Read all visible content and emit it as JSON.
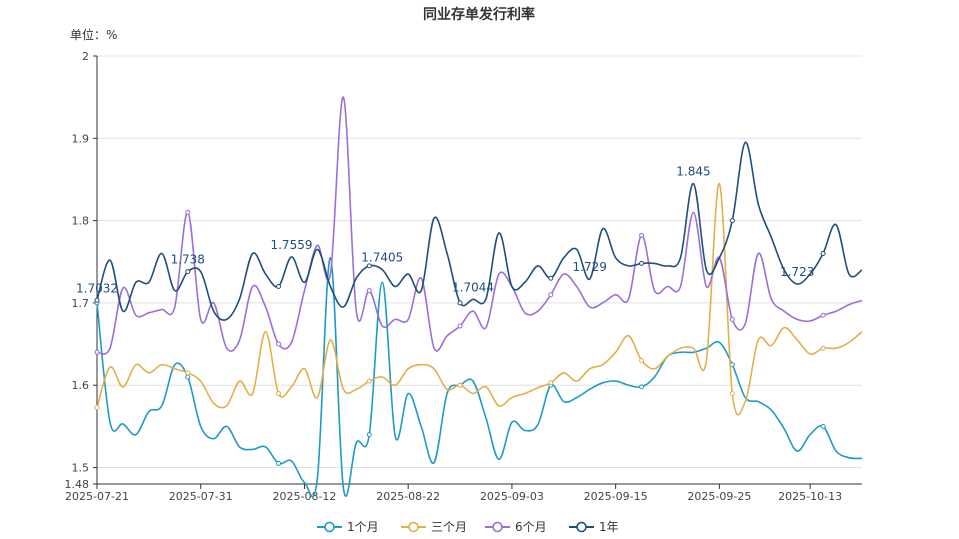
{
  "chart_data": {
    "type": "line",
    "title": "同业存单发行利率",
    "unit_label": "单位：%",
    "ylim": [
      1.48,
      2.0
    ],
    "yticks": [
      "1.48",
      "1.5",
      "1.6",
      "1.7",
      "1.8",
      "1.9",
      "2"
    ],
    "ytick_values": [
      1.48,
      1.5,
      1.6,
      1.7,
      1.8,
      1.9,
      2.0
    ],
    "categories": [
      "2025-07-21",
      "2025-07-22",
      "2025-07-23",
      "2025-07-24",
      "2025-07-25",
      "2025-07-28",
      "2025-07-29",
      "2025-07-30",
      "2025-07-31",
      "2025-08-01",
      "2025-08-04",
      "2025-08-05",
      "2025-08-06",
      "2025-08-07",
      "2025-08-08",
      "2025-08-11",
      "2025-08-12",
      "2025-08-13",
      "2025-08-14",
      "2025-08-15",
      "2025-08-18",
      "2025-08-19",
      "2025-08-20",
      "2025-08-21",
      "2025-08-22",
      "2025-08-25",
      "2025-08-26",
      "2025-08-27",
      "2025-08-28",
      "2025-08-29",
      "2025-09-01",
      "2025-09-02",
      "2025-09-03",
      "2025-09-04",
      "2025-09-05",
      "2025-09-08",
      "2025-09-09",
      "2025-09-10",
      "2025-09-11",
      "2025-09-12",
      "2025-09-15",
      "2025-09-16",
      "2025-09-17",
      "2025-09-18",
      "2025-09-19",
      "2025-09-22",
      "2025-09-23",
      "2025-09-24",
      "2025-09-25",
      "2025-09-26",
      "2025-09-28",
      "2025-09-29",
      "2025-09-30",
      "2025-10-09",
      "2025-10-10",
      "2025-10-13",
      "2025-10-14",
      "2025-10-15",
      "2025-10-16",
      "2025-10-17"
    ],
    "xtick_labels": [
      "2025-07-21",
      "2025-07-31",
      "2025-08-12",
      "2025-08-22",
      "2025-09-03",
      "2025-09-15",
      "2025-09-25",
      "2025-10-13"
    ],
    "xtick_indices": [
      0,
      8,
      16,
      24,
      32,
      40,
      48,
      55
    ],
    "series": [
      {
        "name": "1个月",
        "color": "#1e9ac9",
        "values": [
          1.7,
          1.555,
          1.553,
          1.54,
          1.568,
          1.575,
          1.625,
          1.61,
          1.55,
          1.535,
          1.55,
          1.525,
          1.522,
          1.525,
          1.505,
          1.508,
          1.482,
          1.487,
          1.755,
          1.475,
          1.53,
          1.54,
          1.725,
          1.538,
          1.59,
          1.55,
          1.506,
          1.59,
          1.6,
          1.605,
          1.56,
          1.51,
          1.555,
          1.545,
          1.552,
          1.6,
          1.58,
          1.585,
          1.595,
          1.603,
          1.605,
          1.6,
          1.598,
          1.61,
          1.635,
          1.64,
          1.64,
          1.645,
          1.652,
          1.625,
          1.585,
          1.58,
          1.57,
          1.547,
          1.52,
          1.54,
          1.55,
          1.52,
          1.512,
          1.511
        ],
        "labels": []
      },
      {
        "name": "三个月",
        "color": "#e2b04a",
        "values": [
          1.573,
          1.622,
          1.598,
          1.625,
          1.615,
          1.625,
          1.62,
          1.615,
          1.605,
          1.578,
          1.575,
          1.605,
          1.59,
          1.665,
          1.59,
          1.598,
          1.62,
          1.585,
          1.655,
          1.595,
          1.595,
          1.605,
          1.61,
          1.6,
          1.62,
          1.625,
          1.62,
          1.595,
          1.6,
          1.59,
          1.598,
          1.575,
          1.585,
          1.59,
          1.597,
          1.603,
          1.615,
          1.605,
          1.62,
          1.625,
          1.64,
          1.66,
          1.63,
          1.62,
          1.635,
          1.645,
          1.645,
          1.63,
          1.845,
          1.59,
          1.58,
          1.655,
          1.648,
          1.67,
          1.655,
          1.638,
          1.645,
          1.645,
          1.652,
          1.665
        ],
        "labels": []
      },
      {
        "name": "6个月",
        "color": "#9c6fd8",
        "values": [
          1.64,
          1.645,
          1.718,
          1.685,
          1.688,
          1.692,
          1.695,
          1.81,
          1.68,
          1.7,
          1.645,
          1.655,
          1.72,
          1.695,
          1.65,
          1.652,
          1.715,
          1.77,
          1.735,
          1.95,
          1.69,
          1.715,
          1.672,
          1.68,
          1.68,
          1.73,
          1.645,
          1.66,
          1.672,
          1.69,
          1.67,
          1.735,
          1.72,
          1.688,
          1.69,
          1.71,
          1.735,
          1.72,
          1.695,
          1.7,
          1.71,
          1.705,
          1.782,
          1.715,
          1.72,
          1.72,
          1.81,
          1.72,
          1.755,
          1.68,
          1.675,
          1.76,
          1.705,
          1.69,
          1.68,
          1.678,
          1.685,
          1.69,
          1.698,
          1.703
        ],
        "labels": []
      },
      {
        "name": "1年",
        "color": "#1f4e7d",
        "values": [
          1.7032,
          1.752,
          1.69,
          1.725,
          1.725,
          1.76,
          1.715,
          1.738,
          1.738,
          1.69,
          1.68,
          1.705,
          1.76,
          1.735,
          1.72,
          1.7559,
          1.725,
          1.765,
          1.72,
          1.695,
          1.73,
          1.745,
          1.7405,
          1.72,
          1.735,
          1.715,
          1.803,
          1.76,
          1.7,
          1.7044,
          1.705,
          1.785,
          1.72,
          1.725,
          1.745,
          1.73,
          1.755,
          1.765,
          1.729,
          1.79,
          1.755,
          1.745,
          1.748,
          1.748,
          1.745,
          1.755,
          1.845,
          1.74,
          1.755,
          1.8,
          1.895,
          1.82,
          1.78,
          1.74,
          1.723,
          1.735,
          1.76,
          1.795,
          1.735,
          1.74
        ],
        "labels": [
          {
            "index": 0,
            "text": "1.7032"
          },
          {
            "index": 7,
            "text": "1.738"
          },
          {
            "index": 15,
            "text": "1.7559"
          },
          {
            "index": 22,
            "text": "1.7405"
          },
          {
            "index": 29,
            "text": "1.7044"
          },
          {
            "index": 38,
            "text": "1.729"
          },
          {
            "index": 46,
            "text": "1.845"
          },
          {
            "index": 54,
            "text": "1.723"
          }
        ]
      }
    ],
    "legend": {
      "position": "bottom-center"
    },
    "grid": true
  }
}
